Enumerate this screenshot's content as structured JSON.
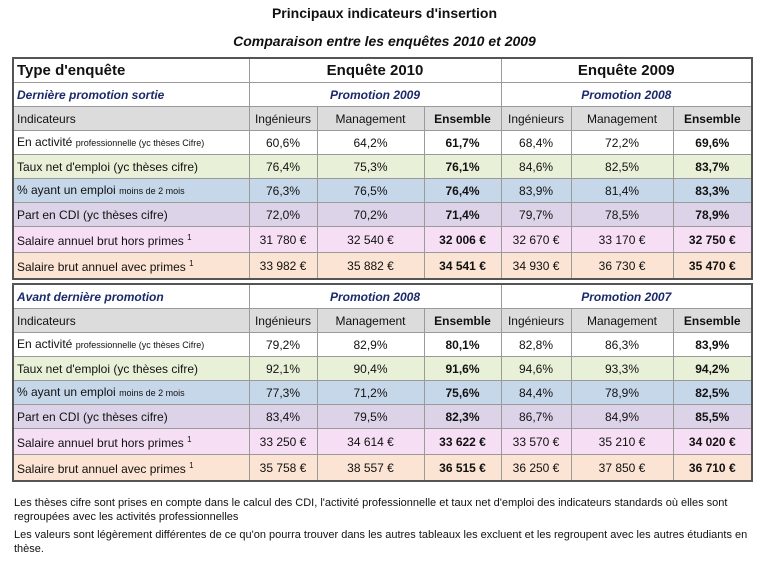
{
  "page": {
    "title": "Principaux indicateurs d'insertion",
    "subtitle": "Comparaison entre les enquêtes 2010 et 2009"
  },
  "colors": {
    "row_activite": "#ffffff",
    "row_taux": "#e8f1d8",
    "row_emploi": "#c7d7ea",
    "row_cdi": "#dcd3e8",
    "row_salaire_hors": "#f6def4",
    "row_salaire_avec": "#fbe4d3",
    "header_indicateurs": "#dcdcdc"
  },
  "table_1": {
    "type_label": "Type d'enquête",
    "survey_a": "Enquête 2010",
    "survey_b": "Enquête 2009",
    "section_label": "Dernière promotion sortie",
    "promo_a": "Promotion 2009",
    "promo_b": "Promotion 2008",
    "columns": {
      "indicateurs": "Indicateurs",
      "ingenieurs": "Ingénieurs",
      "management": "Management",
      "ensemble": "Ensemble"
    },
    "rows": [
      {
        "label_main": "En activité ",
        "label_small": "professionnelle (yc thèses Cifre)",
        "sup": "",
        "values": [
          "60,6%",
          "64,2%",
          "61,7%",
          "68,4%",
          "72,2%",
          "69,6%"
        ]
      },
      {
        "label_main": "Taux net d'emploi (yc thèses cifre)",
        "label_small": "",
        "sup": "",
        "values": [
          "76,4%",
          "75,3%",
          "76,1%",
          "84,6%",
          "82,5%",
          "83,7%"
        ]
      },
      {
        "label_main": "% ayant un emploi ",
        "label_small": "moins de 2 mois",
        "sup": "",
        "values": [
          "76,3%",
          "76,5%",
          "76,4%",
          "83,9%",
          "81,4%",
          "83,3%"
        ]
      },
      {
        "label_main": "Part en CDI (yc thèses cifre)",
        "label_small": "",
        "sup": "",
        "values": [
          "72,0%",
          "70,2%",
          "71,4%",
          "79,7%",
          "78,5%",
          "78,9%"
        ]
      },
      {
        "label_main": "Salaire annuel brut hors primes ",
        "label_small": "",
        "sup": "1",
        "values": [
          "31 780 €",
          "32 540 €",
          "32 006 €",
          "32 670 €",
          "33 170 €",
          "32 750 €"
        ]
      },
      {
        "label_main": "Salaire brut annuel avec primes ",
        "label_small": "",
        "sup": "1",
        "values": [
          "33 982 €",
          "35 882 €",
          "34 541 €",
          "34 930 €",
          "36 730 €",
          "35 470 €"
        ]
      }
    ]
  },
  "table_2": {
    "section_label": "Avant dernière promotion",
    "promo_a": "Promotion 2008",
    "promo_b": "Promotion 2007",
    "columns": {
      "indicateurs": "Indicateurs",
      "ingenieurs": "Ingénieurs",
      "management": "Management",
      "ensemble": "Ensemble"
    },
    "rows": [
      {
        "label_main": "En activité ",
        "label_small": "professionnelle (yc thèses Cifre)",
        "sup": "",
        "values": [
          "79,2%",
          "82,9%",
          "80,1%",
          "82,8%",
          "86,3%",
          "83,9%"
        ]
      },
      {
        "label_main": "Taux net d'emploi (yc thèses cifre)",
        "label_small": "",
        "sup": "",
        "values": [
          "92,1%",
          "90,4%",
          "91,6%",
          "94,6%",
          "93,3%",
          "94,2%"
        ]
      },
      {
        "label_main": "% ayant un emploi ",
        "label_small": "moins de 2 mois",
        "sup": "",
        "values": [
          "77,3%",
          "71,2%",
          "75,6%",
          "84,4%",
          "78,9%",
          "82,5%"
        ]
      },
      {
        "label_main": "Part en CDI (yc thèses cifre)",
        "label_small": "",
        "sup": "",
        "values": [
          "83,4%",
          "79,5%",
          "82,3%",
          "86,7%",
          "84,9%",
          "85,5%"
        ]
      },
      {
        "label_main": "Salaire annuel brut hors primes ",
        "label_small": "",
        "sup": "1",
        "values": [
          "33 250 €",
          "34 614 €",
          "33 622 €",
          "33 570 €",
          "35 210 €",
          "34 020 €"
        ]
      },
      {
        "label_main": "Salaire brut annuel avec primes ",
        "label_small": "",
        "sup": "1",
        "values": [
          "35 758 €",
          "38 557 €",
          "36 515 €",
          "36 250 €",
          "37 850 €",
          "36 710 €"
        ]
      }
    ]
  },
  "footnotes": {
    "note_1": "Les thèses cifre sont prises en compte dans le calcul des CDI, l'activité professionnelle et taux net d'emploi des indicateurs standards où elles sont regroupées avec les activités professionnelles",
    "note_2": "Les valeurs sont légèrement différentes de ce qu'on pourra trouver dans les autres tableaux les excluent et les regroupent avec les autres étudiants en thèse."
  }
}
